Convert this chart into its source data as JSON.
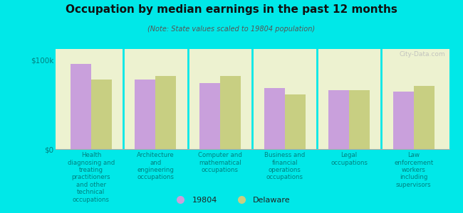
{
  "title": "Occupation by median earnings in the past 12 months",
  "subtitle": "(Note: State values scaled to 19804 population)",
  "background_color": "#00e8e8",
  "plot_bg_color": "#edf2d0",
  "categories": [
    "Health\ndiagnosing and\ntreating\npractitioners\nand other\ntechnical\noccupations",
    "Architecture\nand\nengineering\noccupations",
    "Computer and\nmathematical\noccupations",
    "Business and\nfinancial\noperations\noccupations",
    "Legal\noccupations",
    "Law\nenforcement\nworkers\nincluding\nsupervisors"
  ],
  "values_19804": [
    95000,
    78000,
    74000,
    68000,
    66000,
    64000
  ],
  "values_delaware": [
    78000,
    82000,
    82000,
    61000,
    66000,
    71000
  ],
  "color_19804": "#c9a0dc",
  "color_delaware": "#c8cf82",
  "ylabel_ticks": [
    "$0",
    "$100k"
  ],
  "ytick_vals": [
    0,
    100000
  ],
  "ylim": [
    0,
    112000
  ],
  "legend_label_19804": "19804",
  "legend_label_delaware": "Delaware",
  "watermark": "City-Data.com",
  "bar_width": 0.32
}
